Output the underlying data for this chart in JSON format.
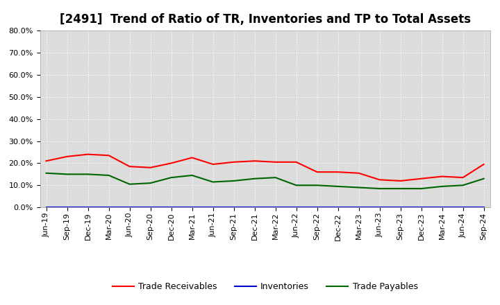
{
  "title": "[2491]  Trend of Ratio of TR, Inventories and TP to Total Assets",
  "x_labels": [
    "Jun-19",
    "Sep-19",
    "Dec-19",
    "Mar-20",
    "Jun-20",
    "Sep-20",
    "Dec-20",
    "Mar-21",
    "Jun-21",
    "Sep-21",
    "Dec-21",
    "Mar-22",
    "Jun-22",
    "Sep-22",
    "Dec-22",
    "Mar-23",
    "Jun-23",
    "Sep-23",
    "Dec-23",
    "Mar-24",
    "Jun-24",
    "Sep-24"
  ],
  "trade_receivables": [
    21.0,
    23.0,
    24.0,
    23.5,
    18.5,
    18.0,
    20.0,
    22.5,
    19.5,
    20.5,
    21.0,
    20.5,
    20.5,
    16.0,
    16.0,
    15.5,
    12.5,
    12.0,
    13.0,
    14.0,
    13.5,
    19.5
  ],
  "inventories": [
    0.1,
    0.1,
    0.1,
    0.1,
    0.1,
    0.1,
    0.1,
    0.1,
    0.1,
    0.1,
    0.1,
    0.1,
    0.1,
    0.1,
    0.1,
    0.1,
    0.1,
    0.1,
    0.1,
    0.1,
    0.1,
    0.1
  ],
  "trade_payables": [
    15.5,
    15.0,
    15.0,
    14.5,
    10.5,
    11.0,
    13.5,
    14.5,
    11.5,
    12.0,
    13.0,
    13.5,
    10.0,
    10.0,
    9.5,
    9.0,
    8.5,
    8.5,
    8.5,
    9.5,
    10.0,
    13.0
  ],
  "tr_color": "#FF0000",
  "inv_color": "#0000CD",
  "tp_color": "#006400",
  "ylim": [
    0.0,
    80.0
  ],
  "yticks": [
    0.0,
    10.0,
    20.0,
    30.0,
    40.0,
    50.0,
    60.0,
    70.0,
    80.0
  ],
  "legend_labels": [
    "Trade Receivables",
    "Inventories",
    "Trade Payables"
  ],
  "fig_bg_color": "#FFFFFF",
  "plot_bg_color": "#DCDCDC",
  "grid_color": "#FFFFFF",
  "title_fontsize": 12,
  "axis_fontsize": 8,
  "legend_fontsize": 9
}
